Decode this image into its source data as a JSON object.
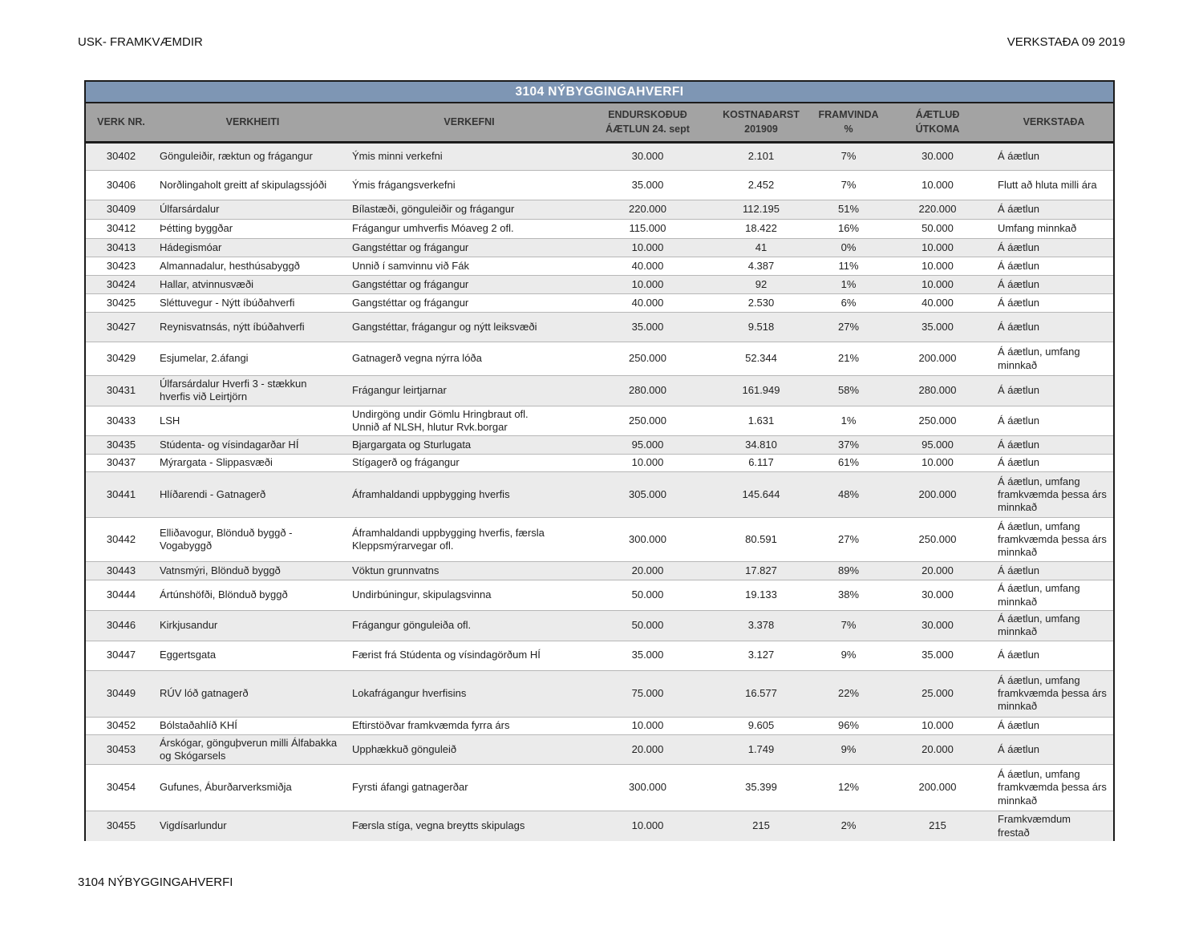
{
  "page": {
    "header_left": "USK- FRAMKVÆMDIR",
    "header_right": "VERKSTAÐA 09 2019",
    "footer": "3104 NÝBYGGINGAHVERFI"
  },
  "colors": {
    "title_band": "#7E96B4",
    "header_band": "#A3A3A3",
    "row_stripe": "#EBEBEB"
  },
  "table": {
    "title": "3104 NÝBYGGINGAHVERFI",
    "columns": [
      {
        "line1": "VERK NR.",
        "line2": ""
      },
      {
        "line1": "VERKHEITI",
        "line2": ""
      },
      {
        "line1": "VERKEFNI",
        "line2": ""
      },
      {
        "line1": "ENDURSKOÐUÐ",
        "line2": "ÁÆTLUN 24. sept"
      },
      {
        "line1": "KOSTNAÐARST",
        "line2": "201909"
      },
      {
        "line1": "FRAMVINDA",
        "line2": "%"
      },
      {
        "line1": "ÁÆTLUÐ",
        "line2": "ÚTKOMA"
      },
      {
        "line1": "VERKSTAÐA",
        "line2": ""
      }
    ],
    "rows": [
      {
        "nr": "30402",
        "heiti": "Gönguleiðir, ræktun og frágangur",
        "efni": "Ýmis minni verkefni",
        "aetlun": "30.000",
        "kostn": "2.101",
        "framvinda": "7%",
        "utkoma": "30.000",
        "stada": "Á áætlun"
      },
      {
        "nr": "30406",
        "heiti": "Norðlingaholt greitt af skipulagssjóði",
        "efni": "Ýmis frágangsverkefni",
        "aetlun": "35.000",
        "kostn": "2.452",
        "framvinda": "7%",
        "utkoma": "10.000",
        "stada": "Flutt að hluta milli ára"
      },
      {
        "nr": "30409",
        "heiti": "Úlfarsárdalur",
        "efni": "Bílastæði, gönguleiðir og frágangur",
        "aetlun": "220.000",
        "kostn": "112.195",
        "framvinda": "51%",
        "utkoma": "220.000",
        "stada": "Á áætlun"
      },
      {
        "nr": "30412",
        "heiti": "Þétting byggðar",
        "efni": "Frágangur umhverfis Móaveg 2 ofl.",
        "aetlun": "115.000",
        "kostn": "18.422",
        "framvinda": "16%",
        "utkoma": "50.000",
        "stada": "Umfang minnkað"
      },
      {
        "nr": "30413",
        "heiti": "Hádegismóar",
        "efni": "Gangstéttar og frágangur",
        "aetlun": "10.000",
        "kostn": "41",
        "framvinda": "0%",
        "utkoma": "10.000",
        "stada": "Á áætlun"
      },
      {
        "nr": "30423",
        "heiti": "Almannadalur, hesthúsabyggð",
        "efni": "Unnið í samvinnu við Fák",
        "aetlun": "40.000",
        "kostn": "4.387",
        "framvinda": "11%",
        "utkoma": "10.000",
        "stada": "Á áætlun"
      },
      {
        "nr": "30424",
        "heiti": "Hallar, atvinnusvæði",
        "efni": "Gangstéttar og frágangur",
        "aetlun": "10.000",
        "kostn": "92",
        "framvinda": "1%",
        "utkoma": "10.000",
        "stada": "Á áætlun"
      },
      {
        "nr": "30425",
        "heiti": "Sléttuvegur - Nýtt íbúðahverfi",
        "efni": "Gangstéttar og frágangur",
        "aetlun": "40.000",
        "kostn": "2.530",
        "framvinda": "6%",
        "utkoma": "40.000",
        "stada": "Á áætlun"
      },
      {
        "nr": "30427",
        "heiti": "Reynisvatnsás, nýtt íbúðahverfi",
        "efni": "Gangstéttar, frágangur og nýtt leiksvæði",
        "aetlun": "35.000",
        "kostn": "9.518",
        "framvinda": "27%",
        "utkoma": "35.000",
        "stada": "Á áætlun"
      },
      {
        "nr": "30429",
        "heiti": "Esjumelar, 2.áfangi",
        "efni": "Gatnagerð vegna nýrra lóða",
        "aetlun": "250.000",
        "kostn": "52.344",
        "framvinda": "21%",
        "utkoma": "200.000",
        "stada": "Á áætlun, umfang\nminnkað"
      },
      {
        "nr": "30431",
        "heiti": "Úlfarsárdalur  Hverfi 3 - stækkun\nhverfis við Leirtjörn",
        "efni": "Frágangur leirtjarnar",
        "aetlun": "280.000",
        "kostn": "161.949",
        "framvinda": "58%",
        "utkoma": "280.000",
        "stada": "Á áætlun"
      },
      {
        "nr": "30433",
        "heiti": "LSH",
        "efni": "Undirgöng undir Gömlu Hringbraut ofl.\nUnnið af NLSH, hlutur Rvk.borgar",
        "aetlun": "250.000",
        "kostn": "1.631",
        "framvinda": "1%",
        "utkoma": "250.000",
        "stada": "Á áætlun"
      },
      {
        "nr": "30435",
        "heiti": "Stúdenta- og vísindagarðar HÍ",
        "efni": "Bjargargata og Sturlugata",
        "aetlun": "95.000",
        "kostn": "34.810",
        "framvinda": "37%",
        "utkoma": "95.000",
        "stada": "Á áætlun"
      },
      {
        "nr": "30437",
        "heiti": "Mýrargata - Slippasvæði",
        "efni": "Stígagerð og frágangur",
        "aetlun": "10.000",
        "kostn": "6.117",
        "framvinda": "61%",
        "utkoma": "10.000",
        "stada": "Á áætlun"
      },
      {
        "nr": "30441",
        "heiti": "Hlíðarendi - Gatnagerð",
        "efni": "Áframhaldandi uppbygging hverfis",
        "aetlun": "305.000",
        "kostn": "145.644",
        "framvinda": "48%",
        "utkoma": "200.000",
        "stada": "Á áætlun, umfang\nframkvæmda þessa árs\nminnkað"
      },
      {
        "nr": "30442",
        "heiti": "Elliðavogur, Blönduð byggð -\nVogabyggð",
        "efni": "Áframhaldandi uppbygging hverfis, færsla\nKleppsmýrarvegar ofl.",
        "aetlun": "300.000",
        "kostn": "80.591",
        "framvinda": "27%",
        "utkoma": "250.000",
        "stada": "Á áætlun, umfang\nframkvæmda þessa árs\nminnkað"
      },
      {
        "nr": "30443",
        "heiti": "Vatnsmýri, Blönduð byggð",
        "efni": "Vöktun grunnvatns",
        "aetlun": "20.000",
        "kostn": "17.827",
        "framvinda": "89%",
        "utkoma": "20.000",
        "stada": "Á áætlun"
      },
      {
        "nr": "30444",
        "heiti": "Ártúnshöfði, Blönduð byggð",
        "efni": "Undirbúningur, skipulagsvinna",
        "aetlun": "50.000",
        "kostn": "19.133",
        "framvinda": "38%",
        "utkoma": "30.000",
        "stada": "Á áætlun, umfang\nminnkað"
      },
      {
        "nr": "30446",
        "heiti": "Kirkjusandur",
        "efni": "Frágangur gönguleiða ofl.",
        "aetlun": "50.000",
        "kostn": "3.378",
        "framvinda": "7%",
        "utkoma": "30.000",
        "stada": "Á áætlun, umfang\nminnkað"
      },
      {
        "nr": "30447",
        "heiti": "Eggertsgata",
        "efni": "Færist frá Stúdenta og vísindagörðum HÍ",
        "aetlun": "35.000",
        "kostn": "3.127",
        "framvinda": "9%",
        "utkoma": "35.000",
        "stada": "Á áætlun"
      },
      {
        "nr": "30449",
        "heiti": "RÚV lóð gatnagerð",
        "efni": "Lokafrágangur hverfisins",
        "aetlun": "75.000",
        "kostn": "16.577",
        "framvinda": "22%",
        "utkoma": "25.000",
        "stada": "Á áætlun, umfang\nframkvæmda þessa árs\nminnkað"
      },
      {
        "nr": "30452",
        "heiti": "Bólstaðahlíð KHÍ",
        "efni": "Eftirstöðvar framkvæmda fyrra árs",
        "aetlun": "10.000",
        "kostn": "9.605",
        "framvinda": "96%",
        "utkoma": "10.000",
        "stada": "Á áætlun"
      },
      {
        "nr": "30453",
        "heiti": "Árskógar, gönguþverun milli Álfabakka\nog Skógarsels",
        "efni": "Upphækkuð gönguleið",
        "aetlun": "20.000",
        "kostn": "1.749",
        "framvinda": "9%",
        "utkoma": "20.000",
        "stada": "Á áætlun"
      },
      {
        "nr": "30454",
        "heiti": "Gufunes, Áburðarverksmiðja",
        "efni": "Fyrsti áfangi gatnagerðar",
        "aetlun": "300.000",
        "kostn": "35.399",
        "framvinda": "12%",
        "utkoma": "200.000",
        "stada": "Á áætlun, umfang\nframkvæmda þessa árs\nminnkað"
      },
      {
        "nr": "30455",
        "heiti": "Vigdísarlundur",
        "efni": "Færsla stíga, vegna breytts skipulags",
        "aetlun": "10.000",
        "kostn": "215",
        "framvinda": "2%",
        "utkoma": "215",
        "stada": "Framkvæmdum\nfrestað"
      }
    ]
  }
}
